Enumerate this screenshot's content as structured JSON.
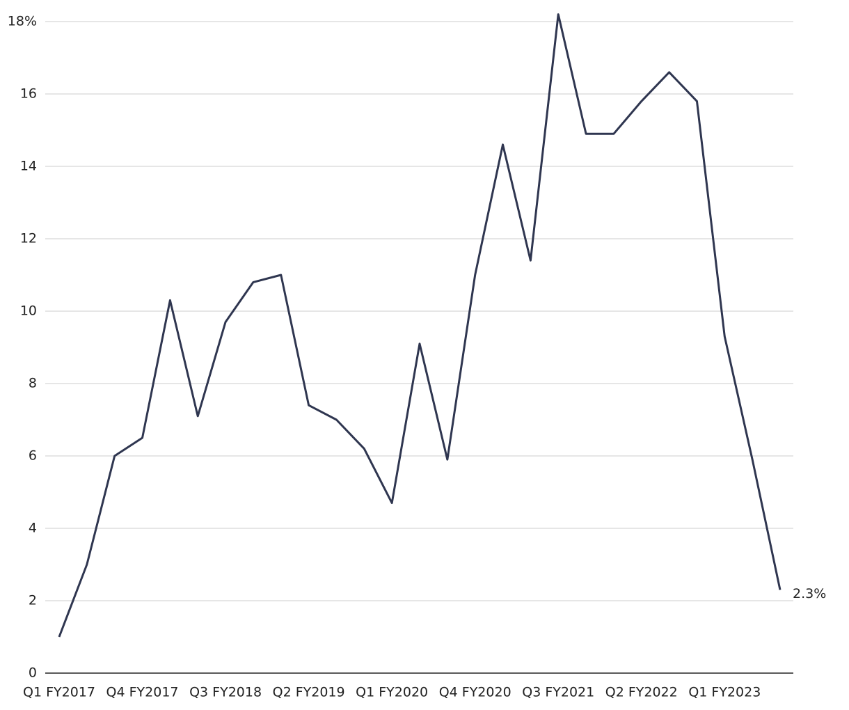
{
  "chart_data": {
    "type": "line",
    "categories": [
      "Q1 FY2017",
      null,
      null,
      "Q4 FY2017",
      null,
      null,
      "Q3 FY2018",
      null,
      null,
      "Q2 FY2019",
      null,
      null,
      "Q1 FY2020",
      null,
      null,
      "Q4 FY2020",
      null,
      null,
      "Q3 FY2021",
      null,
      null,
      "Q2 FY2022",
      null,
      null,
      "Q1 FY2023",
      null,
      null
    ],
    "values": [
      1.0,
      3.0,
      6.0,
      6.5,
      10.3,
      7.1,
      9.7,
      10.8,
      11.0,
      7.4,
      7.0,
      6.2,
      4.7,
      9.1,
      5.9,
      11.0,
      14.6,
      11.4,
      18.2,
      14.9,
      14.9,
      15.8,
      16.6,
      15.8,
      9.3,
      5.9,
      2.3
    ],
    "value_labels": [
      null,
      null,
      null,
      null,
      null,
      null,
      null,
      null,
      null,
      null,
      null,
      null,
      null,
      null,
      null,
      null,
      null,
      null,
      null,
      null,
      null,
      null,
      null,
      null,
      null,
      null,
      "2.3%"
    ],
    "color": "#2f3650",
    "ylim": [
      0,
      18
    ],
    "yticks": [
      0,
      2,
      4,
      6,
      8,
      10,
      12,
      14,
      16,
      {
        "value": 18,
        "label": "18%"
      }
    ],
    "grid": true
  }
}
